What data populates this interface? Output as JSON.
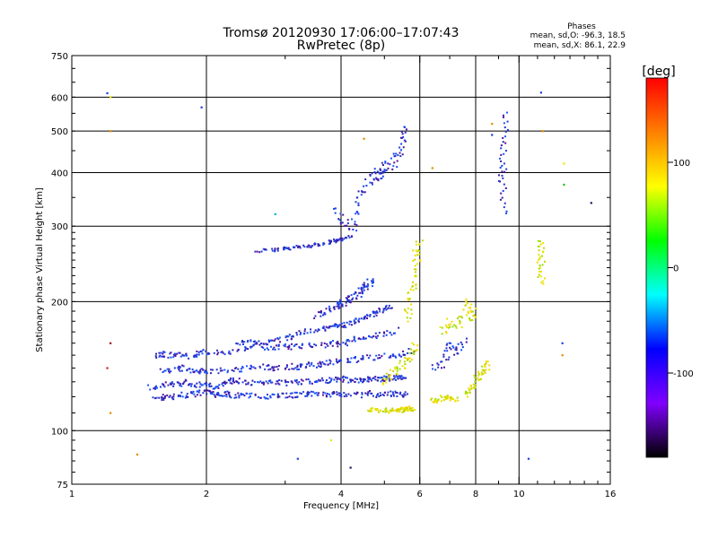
{
  "chart_data": {
    "type": "scatter",
    "title": "Tromsø 20120930 17:06:00–17:07:43",
    "subtitle": "RwPretec (8p)",
    "xlabel": "Frequency [MHz]",
    "ylabel": "Stationary phase Virtual Height [km]",
    "x_scale": "log",
    "y_scale": "log",
    "xlim": [
      1,
      16
    ],
    "ylim": [
      75,
      750
    ],
    "x_ticks": [
      1,
      2,
      4,
      6,
      8,
      10,
      16
    ],
    "x_gridlines": [
      2,
      4,
      6,
      8,
      10
    ],
    "y_ticks": [
      75,
      100,
      200,
      300,
      400,
      500,
      600,
      750
    ],
    "y_gridlines": [
      100,
      200,
      300,
      400,
      500,
      600
    ],
    "stats": {
      "heading": "Phases",
      "line_o": "mean, sd,O: -96.3, 18.5",
      "line_x": "mean, sd,X:  86.1, 22.9"
    },
    "colorbar": {
      "label": "[deg]",
      "range": [
        -180,
        180
      ],
      "ticks": [
        100,
        0,
        -100
      ],
      "colors": [
        "#ff0000",
        "#ff8000",
        "#ffff00",
        "#00ff00",
        "#00ffff",
        "#0000ff",
        "#8000ff",
        "#000000"
      ]
    },
    "o_mode_color": "#1a3fe0",
    "x_mode_color": "#e4e600",
    "traces": [
      {
        "x": [
          1.55,
          1.6,
          1.7,
          1.8,
          1.9,
          2.0,
          2.1,
          2.2,
          2.3,
          2.4,
          2.6,
          2.8,
          3.0,
          3.2,
          3.4,
          3.6,
          3.8,
          4.0,
          4.3,
          4.6,
          4.9,
          5.2,
          5.4,
          5.6
        ],
        "y": [
          118,
          120,
          120,
          121,
          122,
          123,
          121,
          122,
          121,
          121,
          120,
          121,
          121,
          121,
          122,
          121,
          122,
          122,
          121,
          122,
          121,
          122,
          121,
          122
        ],
        "mode": "o",
        "spread": 0.015
      },
      {
        "x": [
          1.5,
          1.6,
          1.7,
          1.8,
          1.9,
          2.0,
          2.1,
          2.2,
          2.3,
          2.4,
          2.6,
          2.8,
          3.0,
          3.2,
          3.4,
          3.6,
          3.8,
          4.0,
          4.2,
          4.4,
          4.6,
          4.8,
          5.0,
          5.2,
          5.4,
          5.6
        ],
        "y": [
          126,
          128,
          128,
          130,
          128,
          128,
          126,
          130,
          131,
          130,
          129,
          130,
          129,
          130,
          130,
          131,
          131,
          132,
          131,
          131,
          132,
          132,
          132,
          133,
          133,
          134
        ],
        "mode": "o",
        "spread": 0.014
      },
      {
        "x": [
          1.6,
          1.7,
          1.8,
          1.9,
          2.0,
          2.2,
          2.4,
          2.6,
          2.8,
          3.0,
          3.2,
          3.4,
          3.6,
          3.8,
          4.0,
          4.3,
          4.6,
          5.0,
          5.4,
          5.8
        ],
        "y": [
          138,
          139,
          140,
          138,
          137,
          138,
          139,
          141,
          140,
          141,
          141,
          142,
          143,
          144,
          145,
          146,
          148,
          149,
          151,
          154
        ],
        "mode": "o",
        "spread": 0.016
      },
      {
        "x": [
          1.55,
          1.6,
          1.7,
          1.8,
          1.9,
          2.0,
          2.2,
          2.4,
          2.6,
          2.8,
          3.0,
          3.2,
          3.5,
          3.8,
          4.0,
          4.3,
          4.6,
          5.0,
          5.4
        ],
        "y": [
          150,
          151,
          150,
          149,
          151,
          153,
          152,
          155,
          158,
          156,
          157,
          157,
          158,
          159,
          160,
          163,
          165,
          168,
          172
        ],
        "mode": "o",
        "spread": 0.016
      },
      {
        "x": [
          2.35,
          2.5,
          2.7,
          2.9,
          3.1,
          3.3,
          3.6,
          3.8,
          4.0,
          4.2,
          4.4,
          4.6,
          4.8,
          5.0,
          5.2
        ],
        "y": [
          160,
          161,
          160,
          163,
          166,
          170,
          172,
          175,
          176,
          178,
          182,
          185,
          188,
          192,
          196
        ],
        "mode": "o",
        "spread": 0.012
      },
      {
        "x": [
          3.5,
          3.7,
          3.9,
          4.0,
          4.1,
          4.2,
          4.4,
          4.5,
          4.6,
          4.8
        ],
        "y": [
          185,
          190,
          195,
          198,
          200,
          205,
          210,
          215,
          220,
          225
        ],
        "mode": "o",
        "spread": 0.02
      },
      {
        "x": [
          2.6,
          2.8,
          3.0,
          3.2,
          3.4,
          3.6,
          3.8,
          3.9,
          4.0,
          4.2
        ],
        "y": [
          263,
          264,
          266,
          268,
          270,
          272,
          275,
          278,
          280,
          285
        ],
        "mode": "o",
        "spread": 0.008
      },
      {
        "x": [
          3.9,
          4.1,
          4.3,
          4.4,
          4.6,
          4.8,
          4.9,
          5.0,
          5.2,
          5.4,
          5.5,
          5.6
        ],
        "y": [
          320,
          310,
          300,
          350,
          380,
          395,
          400,
          405,
          420,
          440,
          470,
          500
        ],
        "mode": "o",
        "spread": 0.035
      },
      {
        "x": [
          4.6,
          4.8,
          5.0,
          5.2,
          5.4,
          5.5,
          5.6,
          5.7,
          5.8
        ],
        "y": [
          112,
          112,
          111,
          112,
          111,
          112,
          113,
          112,
          113
        ],
        "mode": "x",
        "spread": 0.01
      },
      {
        "x": [
          5.0,
          5.2,
          5.4,
          5.6,
          5.8,
          5.9
        ],
        "y": [
          130,
          135,
          140,
          145,
          150,
          160
        ],
        "mode": "x",
        "spread": 0.02
      },
      {
        "x": [
          5.6,
          5.7,
          5.8,
          5.9,
          5.9,
          6.0
        ],
        "y": [
          180,
          200,
          220,
          240,
          260,
          280
        ],
        "mode": "x",
        "spread": 0.025
      },
      {
        "x": [
          6.4,
          6.6,
          6.8,
          7.0,
          7.2
        ],
        "y": [
          118,
          117,
          120,
          119,
          118
        ],
        "mode": "x",
        "spread": 0.01
      },
      {
        "x": [
          6.8,
          7.0,
          7.4,
          7.6,
          7.8,
          8.0
        ],
        "y": [
          170,
          180,
          175,
          200,
          185,
          190
        ],
        "mode": "x",
        "spread": 0.03
      },
      {
        "x": [
          7.6,
          7.8,
          8.0,
          8.2,
          8.4,
          8.6
        ],
        "y": [
          122,
          125,
          130,
          135,
          140,
          145
        ],
        "mode": "x",
        "spread": 0.02
      },
      {
        "x": [
          6.5,
          6.8,
          7.0,
          7.3,
          7.6
        ],
        "y": [
          140,
          145,
          160,
          150,
          165
        ],
        "mode": "o",
        "spread": 0.025
      },
      {
        "x": [
          9.2,
          9.2,
          9.2,
          9.3,
          9.3
        ],
        "y": [
          320,
          380,
          420,
          480,
          560
        ],
        "mode": "o",
        "spread": 0.005
      },
      {
        "x": [
          11.2,
          11.2,
          11.2,
          11.2
        ],
        "y": [
          220,
          240,
          260,
          280
        ],
        "mode": "x",
        "spread": 0.005
      }
    ],
    "isolated_points": [
      {
        "x": 1.2,
        "y": 613,
        "color": "#1a3fe0"
      },
      {
        "x": 1.22,
        "y": 600,
        "color": "#e4e600"
      },
      {
        "x": 1.22,
        "y": 500,
        "color": "#e68a00"
      },
      {
        "x": 1.95,
        "y": 568,
        "color": "#1a3fe0"
      },
      {
        "x": 11.2,
        "y": 615,
        "color": "#1a3fe0"
      },
      {
        "x": 11.3,
        "y": 500,
        "color": "#e68a00"
      },
      {
        "x": 12.6,
        "y": 420,
        "color": "#e4e600"
      },
      {
        "x": 12.6,
        "y": 375,
        "color": "#20c020"
      },
      {
        "x": 14.5,
        "y": 340,
        "color": "#1a1a60"
      },
      {
        "x": 2.85,
        "y": 320,
        "color": "#00b0d0"
      },
      {
        "x": 1.22,
        "y": 160,
        "color": "#a01020"
      },
      {
        "x": 1.2,
        "y": 140,
        "color": "#d02020"
      },
      {
        "x": 1.22,
        "y": 110,
        "color": "#e68a00"
      },
      {
        "x": 1.4,
        "y": 88,
        "color": "#e68a00"
      },
      {
        "x": 3.2,
        "y": 86,
        "color": "#1a3fe0"
      },
      {
        "x": 3.8,
        "y": 95,
        "color": "#e4e600"
      },
      {
        "x": 4.2,
        "y": 82,
        "color": "#1a1a60"
      },
      {
        "x": 10.5,
        "y": 86,
        "color": "#1a3fe0"
      },
      {
        "x": 12.5,
        "y": 150,
        "color": "#e68a00"
      },
      {
        "x": 12.5,
        "y": 160,
        "color": "#1a3fe0"
      },
      {
        "x": 8.7,
        "y": 520,
        "color": "#e68a00"
      },
      {
        "x": 8.7,
        "y": 490,
        "color": "#1a3fe0"
      },
      {
        "x": 6.4,
        "y": 410,
        "color": "#e68a00"
      },
      {
        "x": 4.5,
        "y": 480,
        "color": "#e68a00"
      }
    ]
  }
}
